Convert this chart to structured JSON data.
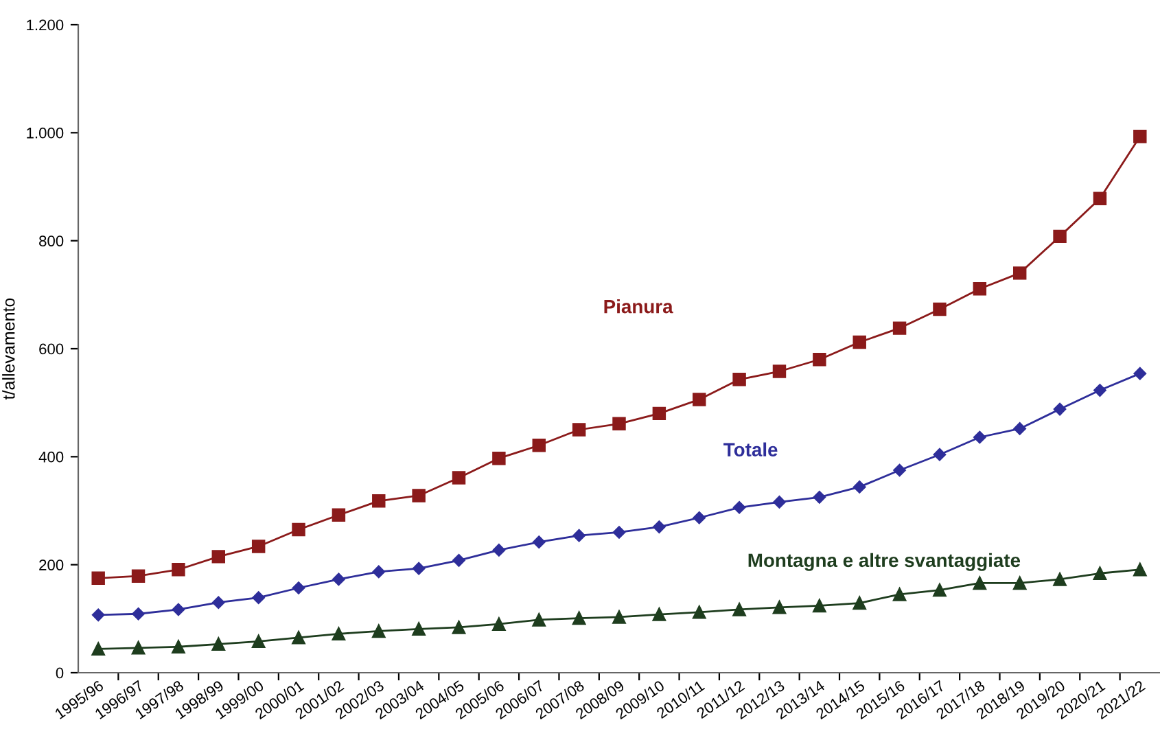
{
  "chart_data": {
    "type": "line",
    "ylabel": "t/allevamento",
    "categories": [
      "1995/96",
      "1996/97",
      "1997/98",
      "1998/99",
      "1999/00",
      "2000/01",
      "2001/02",
      "2002/03",
      "2003/04",
      "2004/05",
      "2005/06",
      "2006/07",
      "2007/08",
      "2008/09",
      "2009/10",
      "2010/11",
      "2011/12",
      "2012/13",
      "2013/14",
      "2014/15",
      "2015/16",
      "2016/17",
      "2017/18",
      "2018/19",
      "2019/20",
      "2020/21",
      "2021/22"
    ],
    "series": [
      {
        "name": "Pianura",
        "color": "#8b1a1a",
        "marker": "square",
        "values": [
          175,
          179,
          191,
          215,
          234,
          265,
          292,
          318,
          328,
          361,
          397,
          421,
          450,
          461,
          480,
          506,
          543,
          558,
          580,
          612,
          638,
          673,
          711,
          740,
          808,
          878,
          993
        ]
      },
      {
        "name": "Totale",
        "color": "#2e2e9a",
        "marker": "diamond",
        "values": [
          107,
          109,
          117,
          130,
          139,
          157,
          173,
          187,
          193,
          208,
          227,
          242,
          254,
          260,
          270,
          287,
          306,
          316,
          325,
          344,
          375,
          404,
          436,
          452,
          488,
          523,
          554
        ]
      },
      {
        "name": "Montagna e altre svantaggiate",
        "color": "#1e3d1e",
        "marker": "triangle",
        "values": [
          44,
          46,
          48,
          53,
          58,
          65,
          72,
          77,
          81,
          84,
          90,
          98,
          101,
          103,
          108,
          112,
          117,
          121,
          124,
          129,
          145,
          153,
          166,
          166,
          173,
          184,
          191
        ]
      }
    ],
    "ylim": [
      0,
      1200
    ],
    "yticks": [
      0,
      200,
      400,
      600,
      800,
      {
        "value": 1000,
        "label": "1.000"
      },
      {
        "value": 1200,
        "label": "1.200"
      }
    ],
    "grid": false,
    "legend": false,
    "line_style": "solid"
  }
}
